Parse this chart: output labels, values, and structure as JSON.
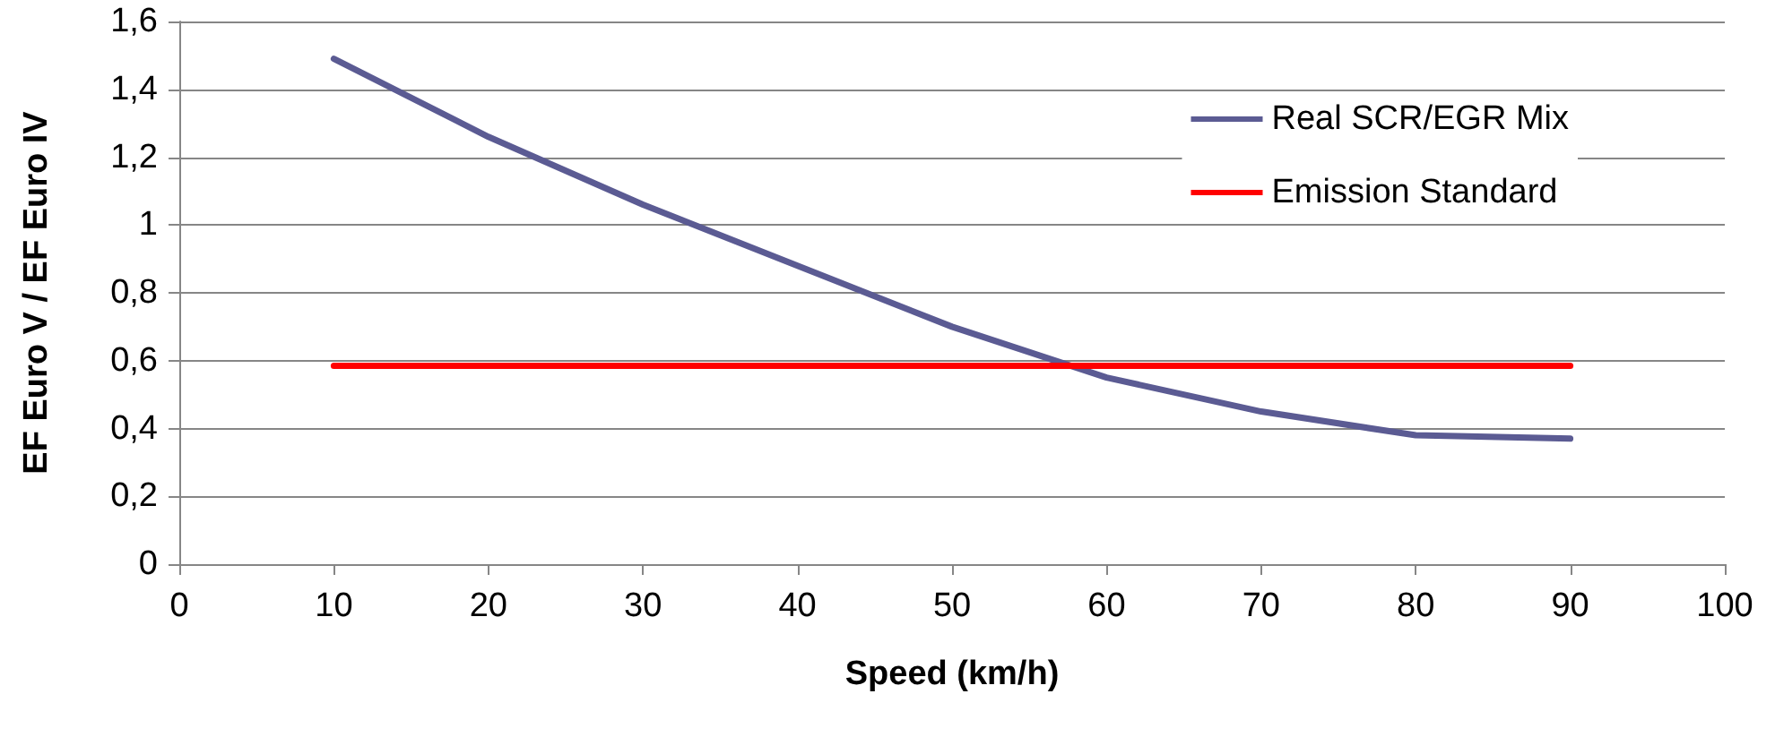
{
  "chart_data": {
    "type": "line",
    "xlabel": "Speed (km/h)",
    "ylabel": "EF Euro V / EF Euro IV",
    "x": [
      10,
      20,
      30,
      40,
      50,
      60,
      70,
      80,
      90
    ],
    "series": [
      {
        "name": "Real SCR/EGR Mix",
        "color": "#5b5b93",
        "values": [
          1.49,
          1.26,
          1.06,
          0.88,
          0.7,
          0.55,
          0.45,
          0.38,
          0.37
        ]
      },
      {
        "name": "Emission Standard",
        "color": "#ff0000",
        "x": [
          10,
          90
        ],
        "values": [
          0.585,
          0.585
        ]
      }
    ],
    "xlim": [
      0,
      100
    ],
    "xticks": [
      0,
      10,
      20,
      30,
      40,
      50,
      60,
      70,
      80,
      90,
      100
    ],
    "ylim": [
      0,
      1.6
    ],
    "yticks": [
      {
        "value": 0,
        "label": "0"
      },
      {
        "value": 0.2,
        "label": "0,2"
      },
      {
        "value": 0.4,
        "label": "0,4"
      },
      {
        "value": 0.6,
        "label": "0,6"
      },
      {
        "value": 0.8,
        "label": "0,8"
      },
      {
        "value": 1,
        "label": "1"
      },
      {
        "value": 1.2,
        "label": "1,2"
      },
      {
        "value": 1.4,
        "label": "1,4"
      },
      {
        "value": 1.6,
        "label": "1,6"
      }
    ],
    "grid": "y",
    "legend": "top right",
    "marker": "none",
    "line_style": "solid"
  }
}
